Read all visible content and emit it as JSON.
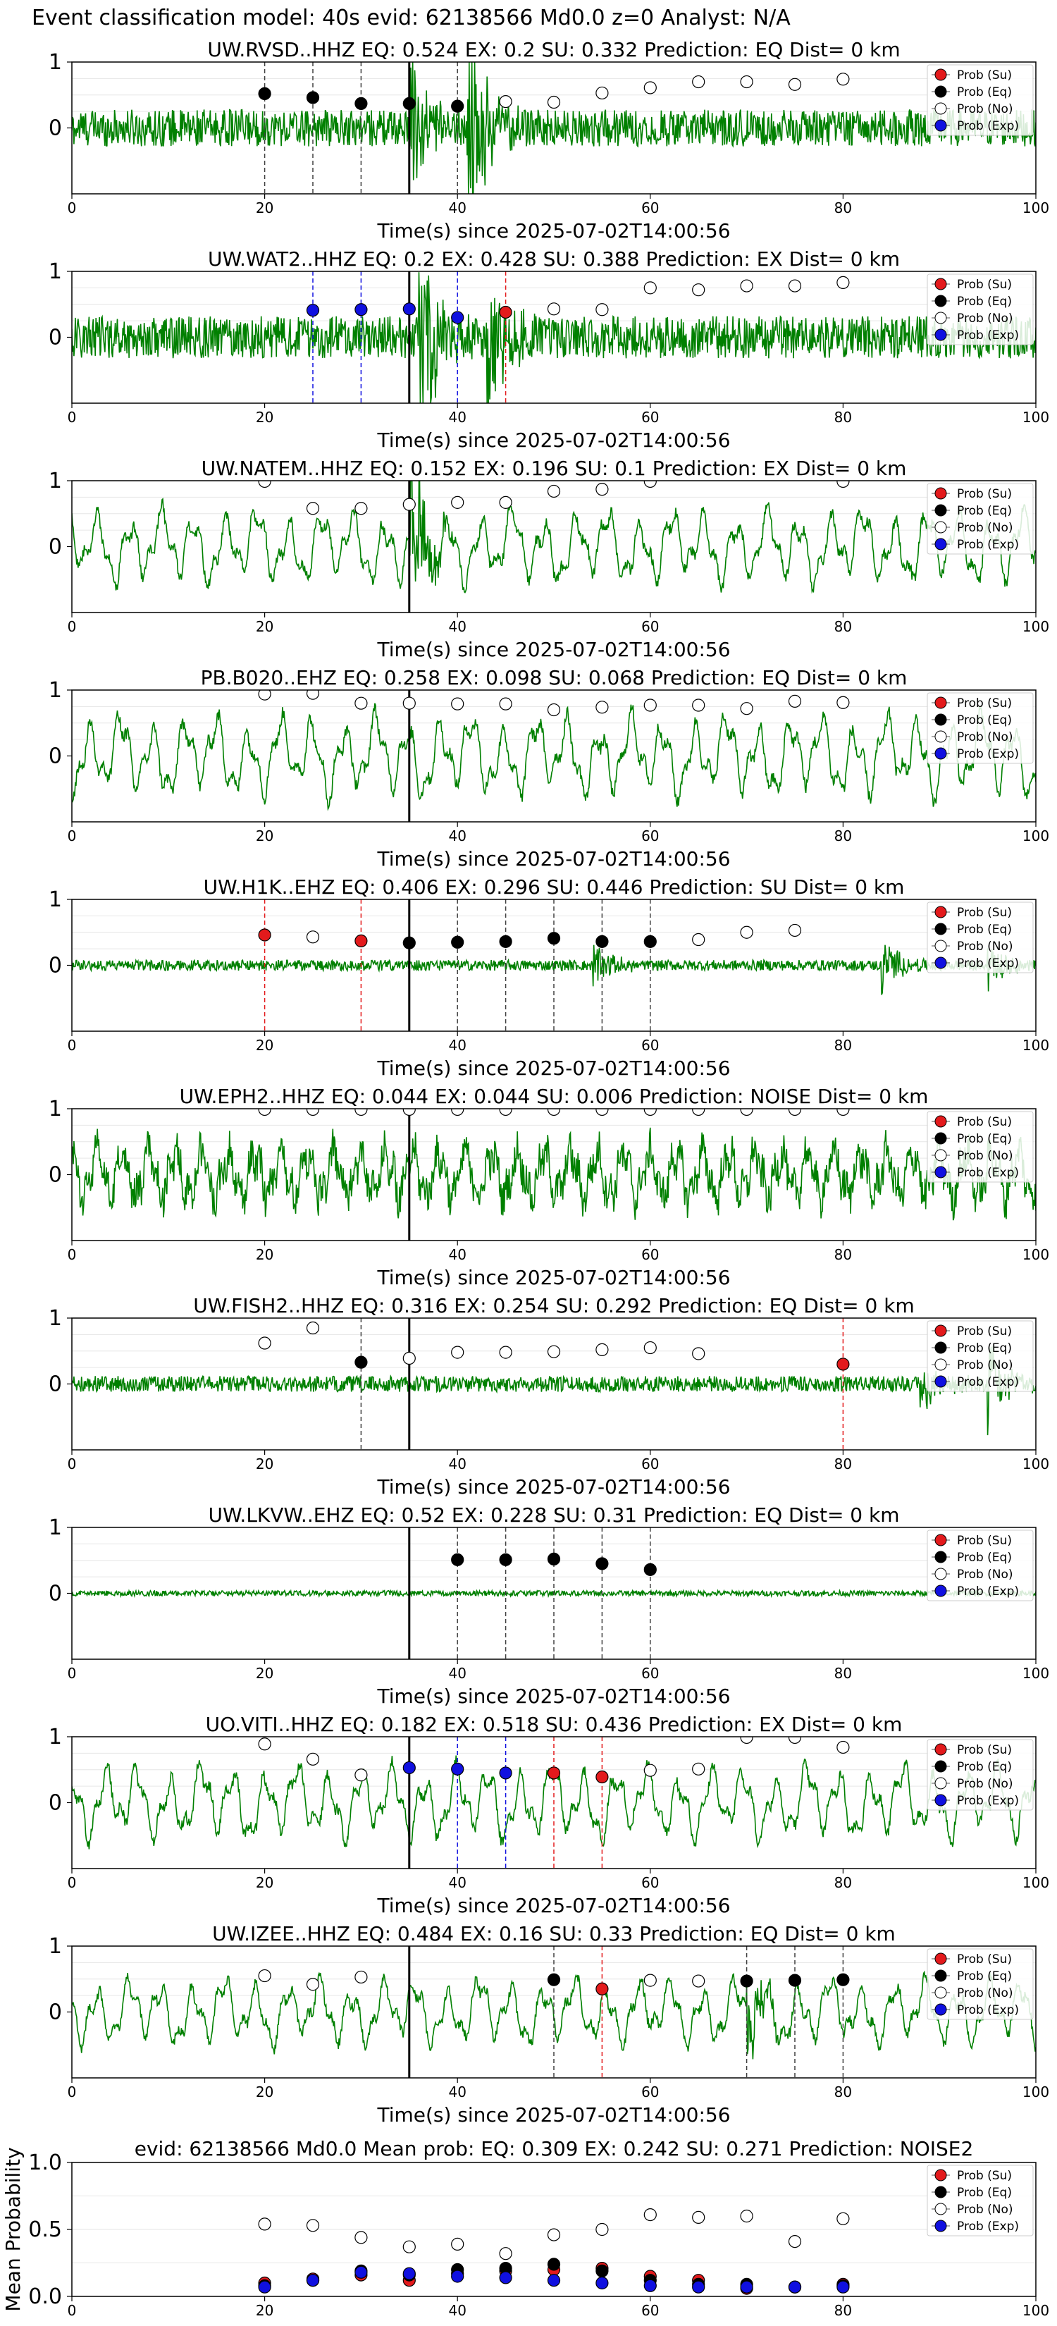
{
  "figure": {
    "title": "Event classification model: 40s evid: 62138566 Md0.0 z=0 Analyst: N/A"
  },
  "legend_labels": [
    "Prob (Su)",
    "Prob (Eq)",
    "Prob (No)",
    "Prob (Exp)"
  ],
  "colors": {
    "waveform": "#008000",
    "su": "#e31a1c",
    "eq": "#000000",
    "no": "#ffffff",
    "exp": "#1010e0",
    "pick_line": "#000000"
  },
  "chart_data": [
    {
      "type": "line",
      "title": "UW.RVSD..HHZ   EQ: 0.524  EX: 0.2  SU: 0.332   Prediction: EQ    Dist= 0 km",
      "xlabel": "Time(s) since 2025-07-02T14:00:56",
      "ylabel": "",
      "xlim": [
        0,
        100
      ],
      "ylim": [
        -1,
        1
      ],
      "xticks": [
        0,
        20,
        40,
        60,
        80,
        100
      ],
      "yticks": [
        0,
        1
      ],
      "pick_time": 35,
      "wave": {
        "amp": 0.28,
        "style": "noise",
        "bursts": [
          [
            35,
            1.5
          ],
          [
            41,
            2.2
          ]
        ]
      },
      "points": [
        {
          "x": 20,
          "y": 0.52,
          "class": "eq"
        },
        {
          "x": 25,
          "y": 0.46,
          "class": "eq"
        },
        {
          "x": 30,
          "y": 0.37,
          "class": "eq"
        },
        {
          "x": 35,
          "y": 0.37,
          "class": "eq"
        },
        {
          "x": 40,
          "y": 0.33,
          "class": "eq"
        },
        {
          "x": 45,
          "y": 0.4,
          "class": "no"
        },
        {
          "x": 50,
          "y": 0.39,
          "class": "no"
        },
        {
          "x": 55,
          "y": 0.53,
          "class": "no"
        },
        {
          "x": 60,
          "y": 0.61,
          "class": "no"
        },
        {
          "x": 65,
          "y": 0.7,
          "class": "no"
        },
        {
          "x": 70,
          "y": 0.7,
          "class": "no"
        },
        {
          "x": 75,
          "y": 0.66,
          "class": "no"
        },
        {
          "x": 80,
          "y": 0.74,
          "class": "no"
        }
      ]
    },
    {
      "type": "line",
      "title": "UW.WAT2..HHZ   EQ: 0.2  EX: 0.428  SU: 0.388   Prediction: EX    Dist= 0 km",
      "xlabel": "Time(s) since 2025-07-02T14:00:56",
      "ylabel": "",
      "xlim": [
        0,
        100
      ],
      "ylim": [
        -1,
        1
      ],
      "xticks": [
        0,
        20,
        40,
        60,
        80,
        100
      ],
      "yticks": [
        0,
        1
      ],
      "pick_time": 35,
      "wave": {
        "amp": 0.32,
        "style": "noise",
        "bursts": [
          [
            36,
            2.3
          ],
          [
            43,
            1.5
          ]
        ]
      },
      "points": [
        {
          "x": 25,
          "y": 0.41,
          "class": "exp"
        },
        {
          "x": 30,
          "y": 0.42,
          "class": "exp"
        },
        {
          "x": 35,
          "y": 0.43,
          "class": "exp"
        },
        {
          "x": 40,
          "y": 0.3,
          "class": "exp"
        },
        {
          "x": 45,
          "y": 0.38,
          "class": "su"
        },
        {
          "x": 50,
          "y": 0.43,
          "class": "no"
        },
        {
          "x": 55,
          "y": 0.42,
          "class": "no"
        },
        {
          "x": 60,
          "y": 0.75,
          "class": "no"
        },
        {
          "x": 65,
          "y": 0.72,
          "class": "no"
        },
        {
          "x": 70,
          "y": 0.78,
          "class": "no"
        },
        {
          "x": 75,
          "y": 0.78,
          "class": "no"
        },
        {
          "x": 80,
          "y": 0.83,
          "class": "no"
        }
      ]
    },
    {
      "type": "line",
      "title": "UW.NATEM..HHZ   EQ: 0.152  EX: 0.196  SU: 0.1   Prediction: EX    Dist= 0 km",
      "xlabel": "Time(s) since 2025-07-02T14:00:56",
      "ylabel": "",
      "xlim": [
        0,
        100
      ],
      "ylim": [
        -1,
        1
      ],
      "xticks": [
        0,
        20,
        40,
        60,
        80,
        100
      ],
      "yticks": [
        0,
        1
      ],
      "pick_time": 35,
      "wave": {
        "amp": 0.5,
        "style": "wavy",
        "bursts": [
          [
            35,
            1.8
          ]
        ]
      },
      "points": [
        {
          "x": 20,
          "y": 0.99,
          "class": "no"
        },
        {
          "x": 25,
          "y": 0.58,
          "class": "no"
        },
        {
          "x": 30,
          "y": 0.58,
          "class": "no"
        },
        {
          "x": 35,
          "y": 0.64,
          "class": "no"
        },
        {
          "x": 40,
          "y": 0.67,
          "class": "no"
        },
        {
          "x": 45,
          "y": 0.67,
          "class": "no"
        },
        {
          "x": 50,
          "y": 0.84,
          "class": "no"
        },
        {
          "x": 55,
          "y": 0.87,
          "class": "no"
        },
        {
          "x": 60,
          "y": 0.99,
          "class": "no"
        },
        {
          "x": 80,
          "y": 0.99,
          "class": "no"
        }
      ]
    },
    {
      "type": "line",
      "title": "PB.B020..EHZ   EQ: 0.258  EX: 0.098  SU: 0.068   Prediction: EQ    Dist= 0 km",
      "xlabel": "Time(s) since 2025-07-02T14:00:56",
      "ylabel": "",
      "xlim": [
        0,
        100
      ],
      "ylim": [
        -1,
        1
      ],
      "xticks": [
        0,
        20,
        40,
        60,
        80,
        100
      ],
      "yticks": [
        0,
        1
      ],
      "pick_time": 35,
      "wave": {
        "amp": 0.55,
        "style": "wavy",
        "bursts": []
      },
      "points": [
        {
          "x": 20,
          "y": 0.94,
          "class": "no"
        },
        {
          "x": 25,
          "y": 0.95,
          "class": "no"
        },
        {
          "x": 30,
          "y": 0.8,
          "class": "no"
        },
        {
          "x": 35,
          "y": 0.8,
          "class": "no"
        },
        {
          "x": 40,
          "y": 0.79,
          "class": "no"
        },
        {
          "x": 45,
          "y": 0.79,
          "class": "no"
        },
        {
          "x": 50,
          "y": 0.7,
          "class": "no"
        },
        {
          "x": 55,
          "y": 0.74,
          "class": "no"
        },
        {
          "x": 60,
          "y": 0.77,
          "class": "no"
        },
        {
          "x": 65,
          "y": 0.77,
          "class": "no"
        },
        {
          "x": 70,
          "y": 0.72,
          "class": "no"
        },
        {
          "x": 75,
          "y": 0.83,
          "class": "no"
        },
        {
          "x": 80,
          "y": 0.81,
          "class": "no"
        }
      ]
    },
    {
      "type": "line",
      "title": "UW.H1K..EHZ   EQ: 0.406  EX: 0.296  SU: 0.446   Prediction: SU    Dist= 0 km",
      "xlabel": "Time(s) since 2025-07-02T14:00:56",
      "ylabel": "",
      "xlim": [
        0,
        100
      ],
      "ylim": [
        -1,
        1
      ],
      "xticks": [
        0,
        20,
        40,
        60,
        80,
        100
      ],
      "yticks": [
        0,
        1
      ],
      "pick_time": 35,
      "wave": {
        "amp": 0.08,
        "style": "noise",
        "bursts": [
          [
            54,
            0.4
          ],
          [
            84,
            0.5
          ],
          [
            95,
            0.4
          ]
        ]
      },
      "points": [
        {
          "x": 20,
          "y": 0.46,
          "class": "su"
        },
        {
          "x": 25,
          "y": 0.43,
          "class": "no"
        },
        {
          "x": 30,
          "y": 0.37,
          "class": "su"
        },
        {
          "x": 35,
          "y": 0.34,
          "class": "eq"
        },
        {
          "x": 40,
          "y": 0.35,
          "class": "eq"
        },
        {
          "x": 45,
          "y": 0.36,
          "class": "eq"
        },
        {
          "x": 50,
          "y": 0.41,
          "class": "eq"
        },
        {
          "x": 55,
          "y": 0.36,
          "class": "eq"
        },
        {
          "x": 60,
          "y": 0.36,
          "class": "eq"
        },
        {
          "x": 65,
          "y": 0.39,
          "class": "no"
        },
        {
          "x": 70,
          "y": 0.5,
          "class": "no"
        },
        {
          "x": 75,
          "y": 0.53,
          "class": "no"
        }
      ]
    },
    {
      "type": "line",
      "title": "UW.EPH2..HHZ   EQ: 0.044  EX: 0.044  SU: 0.006   Prediction: NOISE    Dist= 0 km",
      "xlabel": "Time(s) since 2025-07-02T14:00:56",
      "ylabel": "",
      "xlim": [
        0,
        100
      ],
      "ylim": [
        -1,
        1
      ],
      "xticks": [
        0,
        20,
        40,
        60,
        80,
        100
      ],
      "yticks": [
        0,
        1
      ],
      "pick_time": 35,
      "wave": {
        "amp": 0.5,
        "style": "mixed",
        "bursts": []
      },
      "points": [
        {
          "x": 20,
          "y": 0.99,
          "class": "no"
        },
        {
          "x": 25,
          "y": 0.99,
          "class": "no"
        },
        {
          "x": 30,
          "y": 0.99,
          "class": "no"
        },
        {
          "x": 35,
          "y": 0.99,
          "class": "no"
        },
        {
          "x": 40,
          "y": 0.99,
          "class": "no"
        },
        {
          "x": 45,
          "y": 0.99,
          "class": "no"
        },
        {
          "x": 50,
          "y": 0.99,
          "class": "no"
        },
        {
          "x": 55,
          "y": 0.99,
          "class": "no"
        },
        {
          "x": 60,
          "y": 0.99,
          "class": "no"
        },
        {
          "x": 65,
          "y": 0.99,
          "class": "no"
        },
        {
          "x": 70,
          "y": 0.99,
          "class": "no"
        },
        {
          "x": 75,
          "y": 0.99,
          "class": "no"
        },
        {
          "x": 80,
          "y": 0.99,
          "class": "no"
        }
      ]
    },
    {
      "type": "line",
      "title": "UW.FISH2..HHZ   EQ: 0.316  EX: 0.254  SU: 0.292   Prediction: EQ    Dist= 0 km",
      "xlabel": "Time(s) since 2025-07-02T14:00:56",
      "ylabel": "",
      "xlim": [
        0,
        100
      ],
      "ylim": [
        -1,
        1
      ],
      "xticks": [
        0,
        20,
        40,
        60,
        80,
        100
      ],
      "yticks": [
        0,
        1
      ],
      "pick_time": 35,
      "wave": {
        "amp": 0.12,
        "style": "noise",
        "bursts": [
          [
            88,
            0.45
          ],
          [
            95,
            0.7
          ]
        ]
      },
      "points": [
        {
          "x": 20,
          "y": 0.62,
          "class": "no"
        },
        {
          "x": 25,
          "y": 0.85,
          "class": "no"
        },
        {
          "x": 30,
          "y": 0.33,
          "class": "eq"
        },
        {
          "x": 35,
          "y": 0.39,
          "class": "no"
        },
        {
          "x": 40,
          "y": 0.48,
          "class": "no"
        },
        {
          "x": 45,
          "y": 0.48,
          "class": "no"
        },
        {
          "x": 50,
          "y": 0.49,
          "class": "no"
        },
        {
          "x": 55,
          "y": 0.52,
          "class": "no"
        },
        {
          "x": 60,
          "y": 0.55,
          "class": "no"
        },
        {
          "x": 65,
          "y": 0.46,
          "class": "no"
        },
        {
          "x": 80,
          "y": 0.3,
          "class": "su"
        }
      ]
    },
    {
      "type": "line",
      "title": "UW.LKVW..EHZ   EQ: 0.52  EX: 0.228  SU: 0.31   Prediction: EQ    Dist= 0 km",
      "xlabel": "Time(s) since 2025-07-02T14:00:56",
      "ylabel": "",
      "xlim": [
        0,
        100
      ],
      "ylim": [
        -1,
        1
      ],
      "xticks": [
        0,
        20,
        40,
        60,
        80,
        100
      ],
      "yticks": [
        0,
        1
      ],
      "pick_time": 35,
      "wave": {
        "amp": 0.04,
        "style": "noise",
        "bursts": []
      },
      "points": [
        {
          "x": 40,
          "y": 0.51,
          "class": "eq"
        },
        {
          "x": 45,
          "y": 0.51,
          "class": "eq"
        },
        {
          "x": 50,
          "y": 0.52,
          "class": "eq"
        },
        {
          "x": 55,
          "y": 0.45,
          "class": "eq"
        },
        {
          "x": 60,
          "y": 0.36,
          "class": "eq"
        }
      ]
    },
    {
      "type": "line",
      "title": "UO.VITI..HHZ   EQ: 0.182  EX: 0.518  SU: 0.436   Prediction: EX    Dist= 0 km",
      "xlabel": "Time(s) since 2025-07-02T14:00:56",
      "ylabel": "",
      "xlim": [
        0,
        100
      ],
      "ylim": [
        -1,
        1
      ],
      "xticks": [
        0,
        20,
        40,
        60,
        80,
        100
      ],
      "yticks": [
        0,
        1
      ],
      "pick_time": 35,
      "wave": {
        "amp": 0.5,
        "style": "wavy",
        "bursts": []
      },
      "points": [
        {
          "x": 20,
          "y": 0.89,
          "class": "no"
        },
        {
          "x": 25,
          "y": 0.66,
          "class": "no"
        },
        {
          "x": 30,
          "y": 0.42,
          "class": "no"
        },
        {
          "x": 35,
          "y": 0.53,
          "class": "exp"
        },
        {
          "x": 40,
          "y": 0.51,
          "class": "exp"
        },
        {
          "x": 45,
          "y": 0.45,
          "class": "exp"
        },
        {
          "x": 50,
          "y": 0.45,
          "class": "su"
        },
        {
          "x": 55,
          "y": 0.39,
          "class": "su"
        },
        {
          "x": 60,
          "y": 0.49,
          "class": "no"
        },
        {
          "x": 65,
          "y": 0.51,
          "class": "no"
        },
        {
          "x": 70,
          "y": 0.99,
          "class": "no"
        },
        {
          "x": 75,
          "y": 0.99,
          "class": "no"
        },
        {
          "x": 80,
          "y": 0.84,
          "class": "no"
        }
      ]
    },
    {
      "type": "line",
      "title": "UW.IZEE..HHZ   EQ: 0.484  EX: 0.16  SU: 0.33   Prediction: EQ    Dist= 0 km",
      "xlabel": "Time(s) since 2025-07-02T14:00:56",
      "ylabel": "",
      "xlim": [
        0,
        100
      ],
      "ylim": [
        -1,
        1
      ],
      "xticks": [
        0,
        20,
        40,
        60,
        80,
        100
      ],
      "yticks": [
        0,
        1
      ],
      "pick_time": 35,
      "wave": {
        "amp": 0.45,
        "style": "wavy",
        "bursts": [
          [
            70,
            0.7
          ]
        ]
      },
      "points": [
        {
          "x": 20,
          "y": 0.55,
          "class": "no"
        },
        {
          "x": 25,
          "y": 0.42,
          "class": "no"
        },
        {
          "x": 30,
          "y": 0.53,
          "class": "no"
        },
        {
          "x": 50,
          "y": 0.49,
          "class": "eq"
        },
        {
          "x": 55,
          "y": 0.35,
          "class": "su"
        },
        {
          "x": 60,
          "y": 0.48,
          "class": "no"
        },
        {
          "x": 65,
          "y": 0.47,
          "class": "no"
        },
        {
          "x": 70,
          "y": 0.47,
          "class": "eq"
        },
        {
          "x": 75,
          "y": 0.48,
          "class": "eq"
        },
        {
          "x": 80,
          "y": 0.49,
          "class": "eq"
        }
      ]
    },
    {
      "type": "scatter",
      "title": "evid: 62138566  Md0.0   Mean prob:   EQ: 0.309  EX: 0.242  SU: 0.271   Prediction: NOISE2",
      "xlabel": "",
      "ylabel": "Mean Probability",
      "xlim": [
        0,
        100
      ],
      "ylim": [
        0,
        1
      ],
      "xticks": [
        0,
        20,
        40,
        60,
        80,
        100
      ],
      "yticks": [
        0.0,
        0.5,
        1.0
      ],
      "ytick_labels": [
        "0.0",
        "0.5",
        "1.0"
      ],
      "series": [
        {
          "name": "Prob (No)",
          "class": "no",
          "x": [
            20,
            25,
            30,
            35,
            40,
            45,
            50,
            55,
            60,
            65,
            70,
            75,
            80
          ],
          "y": [
            0.54,
            0.53,
            0.44,
            0.37,
            0.39,
            0.32,
            0.46,
            0.5,
            0.61,
            0.59,
            0.6,
            0.41,
            0.58
          ]
        },
        {
          "name": "Prob (Su)",
          "class": "su",
          "x": [
            20,
            25,
            30,
            35,
            40,
            45,
            50,
            55,
            60,
            65,
            70,
            75,
            80
          ],
          "y": [
            0.1,
            0.13,
            0.16,
            0.12,
            0.17,
            0.19,
            0.2,
            0.21,
            0.15,
            0.12,
            0.06,
            0.07,
            0.09
          ]
        },
        {
          "name": "Prob (Eq)",
          "class": "eq",
          "x": [
            20,
            25,
            30,
            35,
            40,
            45,
            50,
            55,
            60,
            65,
            70,
            75,
            80
          ],
          "y": [
            0.08,
            0.12,
            0.19,
            0.16,
            0.2,
            0.21,
            0.24,
            0.19,
            0.12,
            0.09,
            0.09,
            0.07,
            0.08
          ]
        },
        {
          "name": "Prob (Exp)",
          "class": "exp",
          "x": [
            20,
            25,
            30,
            35,
            40,
            45,
            50,
            55,
            60,
            65,
            70,
            75,
            80
          ],
          "y": [
            0.07,
            0.12,
            0.18,
            0.17,
            0.15,
            0.14,
            0.12,
            0.1,
            0.08,
            0.07,
            0.07,
            0.07,
            0.07
          ]
        }
      ]
    }
  ]
}
